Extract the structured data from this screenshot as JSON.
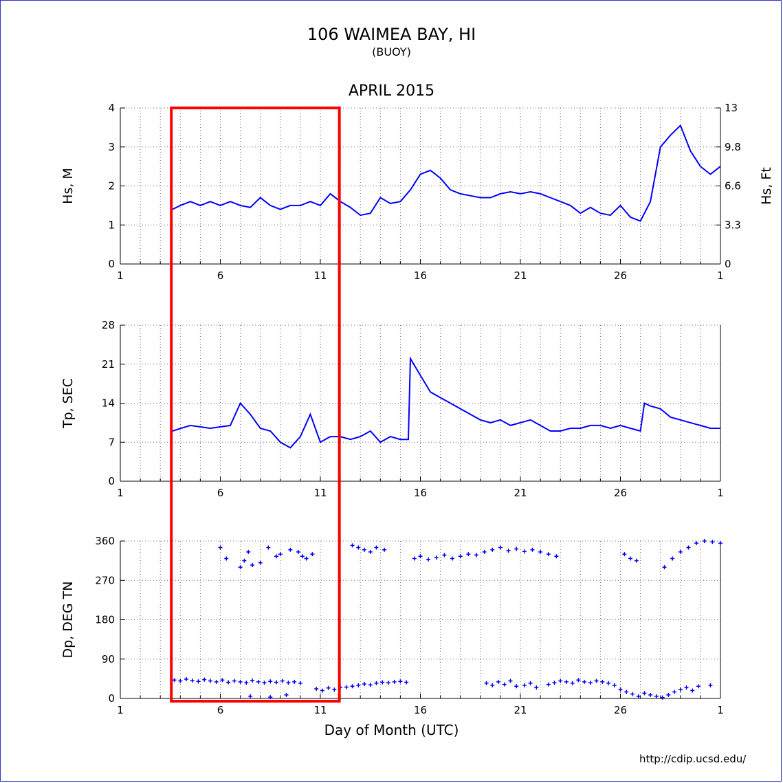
{
  "header": {
    "title": "106 WAIMEA BAY, HI",
    "subtitle": "(BUOY)",
    "period": "APRIL 2015"
  },
  "footer": {
    "xlabel": "Day of Month (UTC)",
    "url": "http://cdip.ucsd.edu/"
  },
  "colors": {
    "series": "#0000ff",
    "highlight": "#ff0000",
    "frame": "#2d2dd0"
  },
  "highlight": {
    "x_start_day": 3.55,
    "x_end_day": 11.95,
    "label": ""
  },
  "chart_data": [
    {
      "type": "line",
      "ylabel": "Hs, M",
      "ylabel_right": "Hs, Ft",
      "ylim": [
        0,
        4
      ],
      "yticks": [
        "0",
        "1",
        "2",
        "3",
        "4"
      ],
      "yticks_right": [
        "0",
        "3.3",
        "6.6",
        "9.8",
        "13"
      ],
      "xlim": [
        1,
        31
      ],
      "xticks": [
        "1",
        "6",
        "11",
        "16",
        "21",
        "26",
        "1"
      ],
      "grid": true,
      "x": [
        3.6,
        4.0,
        4.5,
        5.0,
        5.5,
        6.0,
        6.5,
        7.0,
        7.5,
        8.0,
        8.5,
        9.0,
        9.5,
        10.0,
        10.5,
        11.0,
        11.5,
        12.0,
        12.5,
        13.0,
        13.5,
        14.0,
        14.5,
        15.0,
        15.5,
        16.0,
        16.5,
        17.0,
        17.5,
        18.0,
        18.5,
        19.0,
        19.5,
        20.0,
        20.5,
        21.0,
        21.5,
        22.0,
        22.5,
        23.0,
        23.5,
        24.0,
        24.5,
        25.0,
        25.5,
        26.0,
        26.5,
        27.0,
        27.5,
        28.0,
        28.5,
        29.0,
        29.5,
        30.0,
        30.5,
        31.0
      ],
      "values": [
        1.4,
        1.5,
        1.6,
        1.5,
        1.6,
        1.5,
        1.6,
        1.5,
        1.45,
        1.7,
        1.5,
        1.4,
        1.5,
        1.5,
        1.6,
        1.5,
        1.8,
        1.6,
        1.45,
        1.25,
        1.3,
        1.7,
        1.55,
        1.6,
        1.9,
        2.3,
        2.4,
        2.2,
        1.9,
        1.8,
        1.75,
        1.7,
        1.7,
        1.8,
        1.85,
        1.8,
        1.85,
        1.8,
        1.7,
        1.6,
        1.5,
        1.3,
        1.45,
        1.3,
        1.25,
        1.5,
        1.2,
        1.1,
        1.6,
        3.0,
        3.3,
        3.55,
        2.9,
        2.5,
        2.3,
        2.5
      ]
    },
    {
      "type": "line",
      "ylabel": "Tp, SEC",
      "ylim": [
        0,
        28
      ],
      "yticks": [
        "0",
        "7",
        "14",
        "21",
        "28"
      ],
      "xlim": [
        1,
        31
      ],
      "xticks": [
        "1",
        "6",
        "11",
        "16",
        "21",
        "26",
        "1"
      ],
      "grid": true,
      "x": [
        3.6,
        4.5,
        5.5,
        6.5,
        7.0,
        7.5,
        8.0,
        8.5,
        9.0,
        9.5,
        10.0,
        10.5,
        11.0,
        11.5,
        12.0,
        12.5,
        13.0,
        13.5,
        14.0,
        14.5,
        15.0,
        15.4,
        15.5,
        16.0,
        16.5,
        17.0,
        17.5,
        18.0,
        18.5,
        19.0,
        19.5,
        20.0,
        20.5,
        21.0,
        21.5,
        22.0,
        22.5,
        23.0,
        23.5,
        24.0,
        24.5,
        25.0,
        25.5,
        26.0,
        26.5,
        27.0,
        27.2,
        27.5,
        28.0,
        28.5,
        29.0,
        29.5,
        30.0,
        30.5,
        31.0
      ],
      "values": [
        9,
        10,
        9.5,
        10,
        14,
        12,
        9.5,
        9,
        7,
        6,
        8,
        12,
        7,
        8,
        8,
        7.5,
        8,
        9,
        7,
        8,
        7.5,
        7.5,
        22,
        19,
        16,
        15,
        14,
        13,
        12,
        11,
        10.5,
        11,
        10,
        10.5,
        11,
        10,
        9,
        9,
        9.5,
        9.5,
        10,
        10,
        9.5,
        10,
        9.5,
        9,
        14,
        13.5,
        13,
        11.5,
        11,
        10.5,
        10,
        9.5,
        9.5
      ]
    },
    {
      "type": "scatter",
      "ylabel": "Dp, DEG TN",
      "ylim": [
        0,
        360
      ],
      "yticks": [
        "0",
        "90",
        "180",
        "270",
        "360"
      ],
      "xlim": [
        1,
        31
      ],
      "xticks": [
        "1",
        "6",
        "11",
        "16",
        "21",
        "26",
        "1"
      ],
      "grid": true,
      "x": [
        3.7,
        4.0,
        4.3,
        4.6,
        4.9,
        5.2,
        5.5,
        5.8,
        6.1,
        6.4,
        6.7,
        7.0,
        7.3,
        7.6,
        7.9,
        8.2,
        8.5,
        8.8,
        9.1,
        9.4,
        9.7,
        10.0,
        10.8,
        11.1,
        11.4,
        11.7,
        12.0,
        12.3,
        12.6,
        12.9,
        13.2,
        13.5,
        13.8,
        14.1,
        14.4,
        14.7,
        15.0,
        15.3,
        6.0,
        6.3,
        7.0,
        7.2,
        7.4,
        7.6,
        8.0,
        8.4,
        8.8,
        9.0,
        9.5,
        9.9,
        10.1,
        10.3,
        10.6,
        12.6,
        12.9,
        13.2,
        13.5,
        13.8,
        14.2,
        15.7,
        16.0,
        16.4,
        16.8,
        17.2,
        17.6,
        18.0,
        18.4,
        18.8,
        19.2,
        19.6,
        20.0,
        20.4,
        20.8,
        21.2,
        21.6,
        22.0,
        22.4,
        22.8,
        19.3,
        19.6,
        19.9,
        20.2,
        20.5,
        20.8,
        21.2,
        21.5,
        21.8,
        22.4,
        22.7,
        23.0,
        23.3,
        23.6,
        23.9,
        24.2,
        24.5,
        24.8,
        25.1,
        25.4,
        25.7,
        26.0,
        26.3,
        26.6,
        26.9,
        27.2,
        27.5,
        27.8,
        28.1,
        28.4,
        28.7,
        29.0,
        29.3,
        29.6,
        29.9,
        30.5,
        26.2,
        26.5,
        26.8,
        28.2,
        28.6,
        29.0,
        29.4,
        29.8,
        30.2,
        30.6,
        31.0,
        7.5,
        8.5,
        9.3
      ],
      "values": [
        42,
        40,
        44,
        41,
        39,
        43,
        40,
        38,
        42,
        37,
        40,
        38,
        36,
        41,
        38,
        36,
        39,
        37,
        40,
        36,
        38,
        35,
        22,
        18,
        24,
        20,
        25,
        26,
        28,
        30,
        33,
        31,
        35,
        37,
        36,
        38,
        39,
        37,
        345,
        320,
        300,
        315,
        335,
        305,
        310,
        345,
        325,
        330,
        340,
        335,
        325,
        320,
        330,
        350,
        345,
        340,
        335,
        345,
        340,
        320,
        325,
        318,
        322,
        328,
        320,
        325,
        330,
        328,
        335,
        340,
        345,
        338,
        342,
        336,
        340,
        335,
        330,
        325,
        35,
        30,
        38,
        32,
        40,
        28,
        30,
        35,
        25,
        32,
        36,
        40,
        38,
        35,
        42,
        38,
        36,
        40,
        38,
        35,
        30,
        20,
        15,
        10,
        5,
        12,
        8,
        5,
        2,
        8,
        15,
        20,
        25,
        18,
        28,
        30,
        330,
        320,
        315,
        300,
        320,
        335,
        345,
        355,
        360,
        358,
        355,
        5,
        3,
        8
      ]
    }
  ]
}
